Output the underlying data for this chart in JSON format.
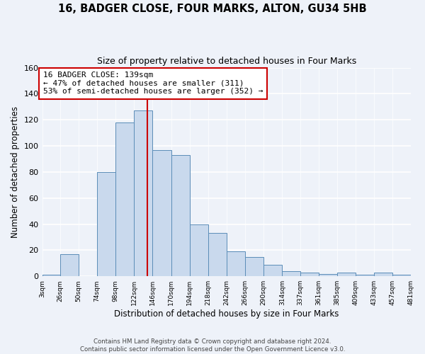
{
  "title": "16, BADGER CLOSE, FOUR MARKS, ALTON, GU34 5HB",
  "subtitle": "Size of property relative to detached houses in Four Marks",
  "xlabel": "Distribution of detached houses by size in Four Marks",
  "ylabel": "Number of detached properties",
  "bin_edges": [
    3,
    26,
    50,
    74,
    98,
    122,
    146,
    170,
    194,
    218,
    242,
    266,
    290,
    314,
    337,
    361,
    385,
    409,
    433,
    457,
    481
  ],
  "bar_heights": [
    1,
    17,
    0,
    80,
    118,
    127,
    97,
    93,
    40,
    33,
    19,
    15,
    9,
    4,
    3,
    2,
    3,
    1,
    3,
    1
  ],
  "bar_color": "#c9d9ed",
  "bar_edge_color": "#5b8db8",
  "vline_x": 139,
  "vline_color": "#cc0000",
  "annotation_text": "16 BADGER CLOSE: 139sqm\n← 47% of detached houses are smaller (311)\n53% of semi-detached houses are larger (352) →",
  "annotation_box_color": "#ffffff",
  "annotation_box_edge_color": "#cc0000",
  "ylim": [
    0,
    160
  ],
  "yticks": [
    0,
    20,
    40,
    60,
    80,
    100,
    120,
    140,
    160
  ],
  "bg_color": "#eef2f9",
  "grid_color": "#ffffff",
  "footer1": "Contains HM Land Registry data © Crown copyright and database right 2024.",
  "footer2": "Contains public sector information licensed under the Open Government Licence v3.0.",
  "title_fontsize": 10.5,
  "subtitle_fontsize": 9
}
